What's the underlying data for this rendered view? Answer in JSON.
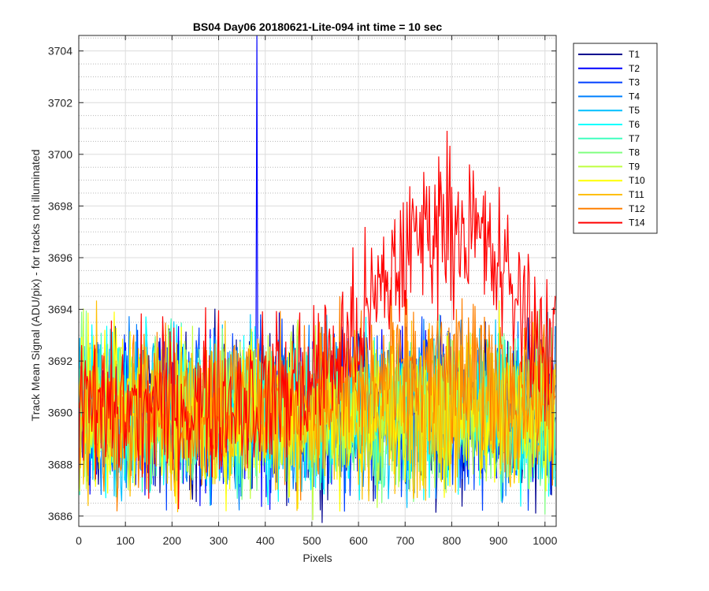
{
  "chart_data": {
    "type": "line",
    "title": "BS04 Day06 20180621-Lite-094 int time = 10 sec",
    "xlabel": "Pixels",
    "ylabel": "Track Mean Signal (ADU/pix) - for tracks not illuminated",
    "xlim": [
      0,
      1024
    ],
    "ylim": [
      3685.6,
      3704.6
    ],
    "x_ticks": [
      0,
      100,
      200,
      300,
      400,
      500,
      600,
      700,
      800,
      900,
      1000
    ],
    "y_ticks": [
      3686,
      3688,
      3690,
      3692,
      3694,
      3696,
      3698,
      3700,
      3702,
      3704
    ],
    "grid": "major and minor",
    "legend_position": "outside-right",
    "series": [
      {
        "name": "T1",
        "color": "#00008F",
        "baseline": 3690,
        "noise": 3.0,
        "spike": null
      },
      {
        "name": "T2",
        "color": "#0000FF",
        "baseline": 3690,
        "noise": 3.0,
        "spike": {
          "x": 382,
          "y": 3704.6
        }
      },
      {
        "name": "T3",
        "color": "#0040FF",
        "baseline": 3690,
        "noise": 3.0,
        "spike": null
      },
      {
        "name": "T4",
        "color": "#0080FF",
        "baseline": 3690,
        "noise": 3.0,
        "spike": null
      },
      {
        "name": "T5",
        "color": "#00BFFF",
        "baseline": 3690,
        "noise": 3.0,
        "spike": null
      },
      {
        "name": "T6",
        "color": "#00FFFF",
        "baseline": 3690,
        "noise": 3.0,
        "spike": null
      },
      {
        "name": "T7",
        "color": "#40FFBF",
        "baseline": 3690,
        "noise": 3.0,
        "spike": null
      },
      {
        "name": "T8",
        "color": "#80FF80",
        "baseline": 3690,
        "noise": 3.0,
        "spike": null
      },
      {
        "name": "T9",
        "color": "#BFFF40",
        "baseline": 3690,
        "noise": 3.0,
        "spike": null
      },
      {
        "name": "T10",
        "color": "#FFFF00",
        "baseline": 3690,
        "noise": 3.0,
        "spike": null
      },
      {
        "name": "T11",
        "color": "#FFBF00",
        "baseline": 3690,
        "noise": 3.0,
        "spike": null
      },
      {
        "name": "T12",
        "color": "#FF8000",
        "baseline": 3690,
        "noise": 3.0,
        "bump_peak": 3691.5,
        "spike": null
      },
      {
        "name": "T14",
        "color": "#FF0000",
        "baseline": 3690,
        "noise": 3.0,
        "bump_peak": 3697.5,
        "spike": null
      }
    ]
  }
}
